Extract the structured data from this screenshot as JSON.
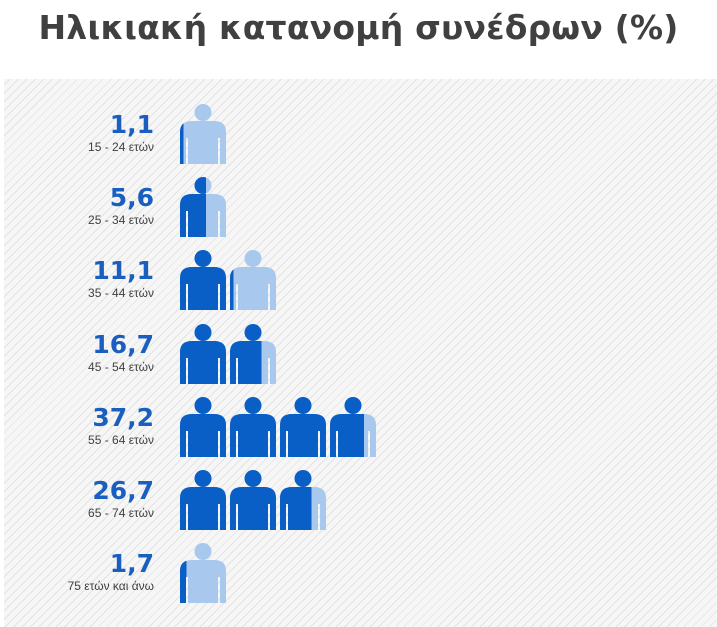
{
  "title": "Ηλικιακή κατανομή συνέδρων (%)",
  "colors": {
    "filled": "#0a5fc6",
    "empty": "#a8c8ee",
    "value_text": "#1a5fbf",
    "label_text": "#404040",
    "title_text": "#404040"
  },
  "icon_name": "person-icon",
  "chart_data": {
    "type": "pictograph",
    "title": "Ηλικιακή κατανομή συνέδρων (%)",
    "unit_per_icon": 10,
    "categories": [
      "15 - 24 ετών",
      "25 - 34 ετών",
      "35 - 44 ετών",
      "45 - 54 ετών",
      "55 - 64 ετών",
      "65 - 74 ετών",
      "75 ετών και άνω"
    ],
    "value_labels": [
      "1,1",
      "5,6",
      "11,1",
      "16,7",
      "37,2",
      "26,7",
      "1,7"
    ],
    "values": [
      1.1,
      5.6,
      11.1,
      16.7,
      37.2,
      26.7,
      1.7
    ]
  }
}
